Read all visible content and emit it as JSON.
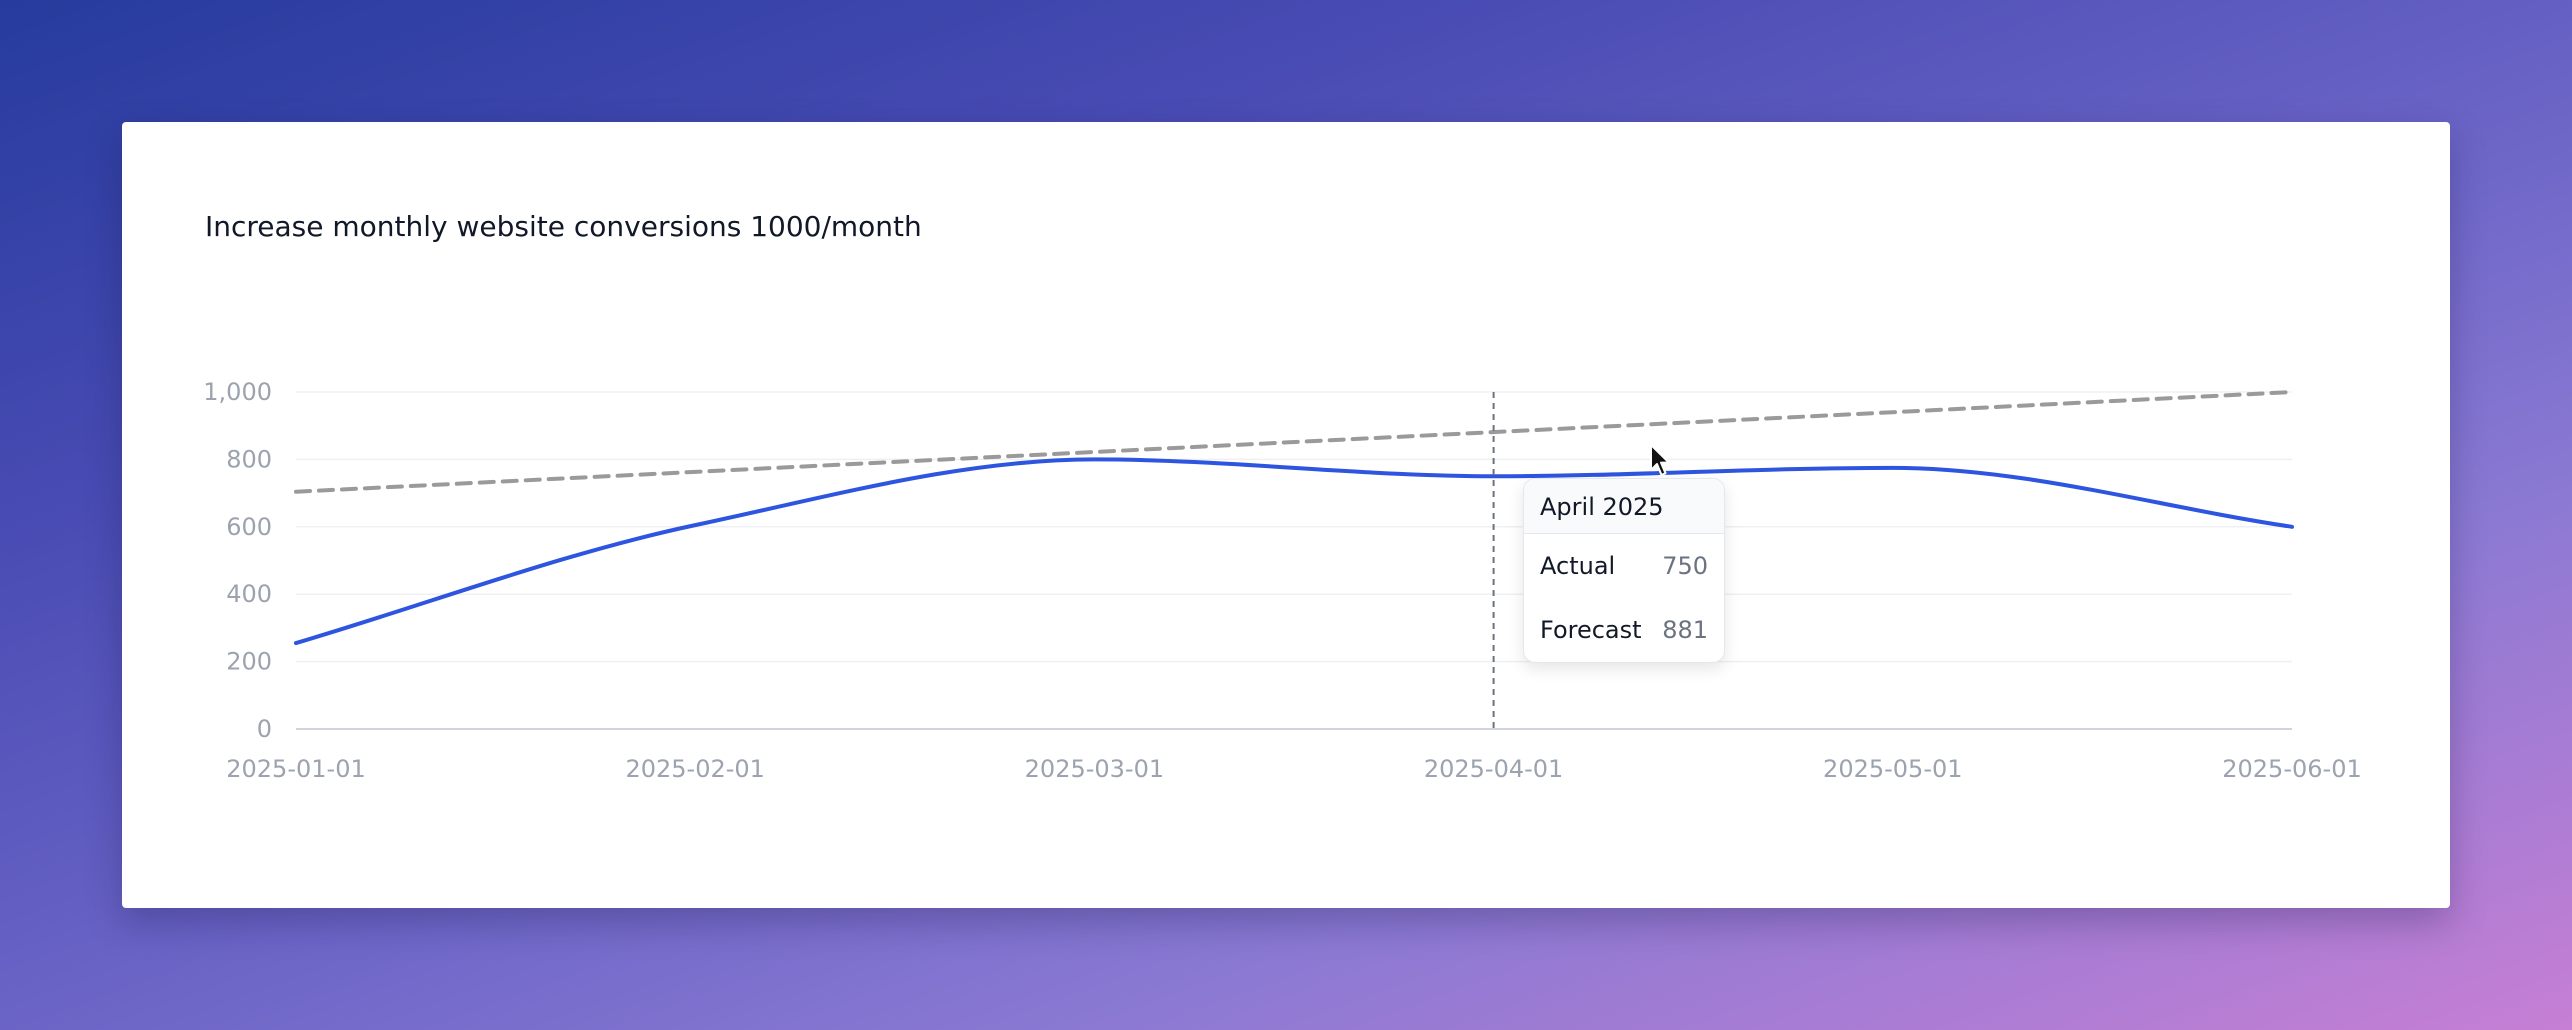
{
  "card": {
    "title": "Increase monthly website conversions 1000/month"
  },
  "chart_data": {
    "type": "line",
    "title": "Increase monthly website conversions 1000/month",
    "xlabel": "",
    "ylabel": "",
    "x": [
      "2025-01-01",
      "2025-02-01",
      "2025-03-01",
      "2025-04-01",
      "2025-05-01",
      "2025-06-01"
    ],
    "x_tick_labels": [
      "2025-01-01",
      "2025-02-01",
      "2025-03-01",
      "2025-04-01",
      "2025-05-01",
      "2025-06-01"
    ],
    "y_ticks": [
      0,
      200,
      400,
      600,
      800,
      1000
    ],
    "y_tick_labels": [
      "0",
      "200",
      "400",
      "600",
      "800",
      "1,000"
    ],
    "ylim": [
      0,
      1000
    ],
    "grid": true,
    "series": [
      {
        "name": "Actual",
        "values": [
          255,
          605,
          800,
          750,
          775,
          600
        ],
        "color": "#2d55e0",
        "style": "solid"
      },
      {
        "name": "Forecast",
        "values": [
          704,
          763,
          822,
          881,
          940,
          1000
        ],
        "color": "#9a9a9a",
        "style": "dashed"
      }
    ],
    "hover": {
      "x": "2025-04-01"
    }
  },
  "tooltip": {
    "title": "April 2025",
    "rows": [
      {
        "label": "Actual",
        "value": "750"
      },
      {
        "label": "Forecast",
        "value": "881"
      }
    ]
  }
}
